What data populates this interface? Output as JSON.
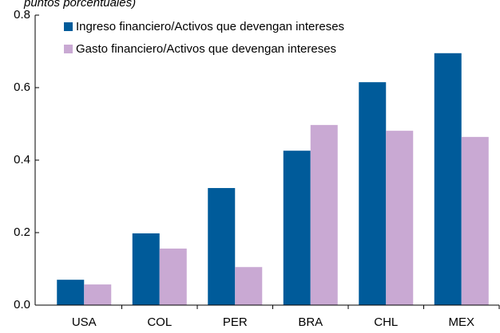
{
  "chart_data": {
    "type": "bar",
    "subtitle": "puntos porcentuales)",
    "categories": [
      "USA",
      "COL",
      "PER",
      "BRA",
      "CHL",
      "MEX"
    ],
    "series": [
      {
        "name": "Ingreso financiero/Activos que devengan intereses",
        "color": "#005b9a",
        "values": [
          0.07,
          0.198,
          0.323,
          0.426,
          0.615,
          0.695
        ]
      },
      {
        "name": "Gasto financiero/Activos que devengan intereses",
        "color": "#c9a9d3",
        "values": [
          0.057,
          0.156,
          0.105,
          0.497,
          0.481,
          0.464
        ]
      }
    ],
    "ylim": [
      0,
      0.8
    ],
    "yticks": [
      {
        "value": 0,
        "label": "0.0"
      },
      0.2,
      0.4,
      0.6,
      0.8
    ],
    "legend": "top-left"
  }
}
